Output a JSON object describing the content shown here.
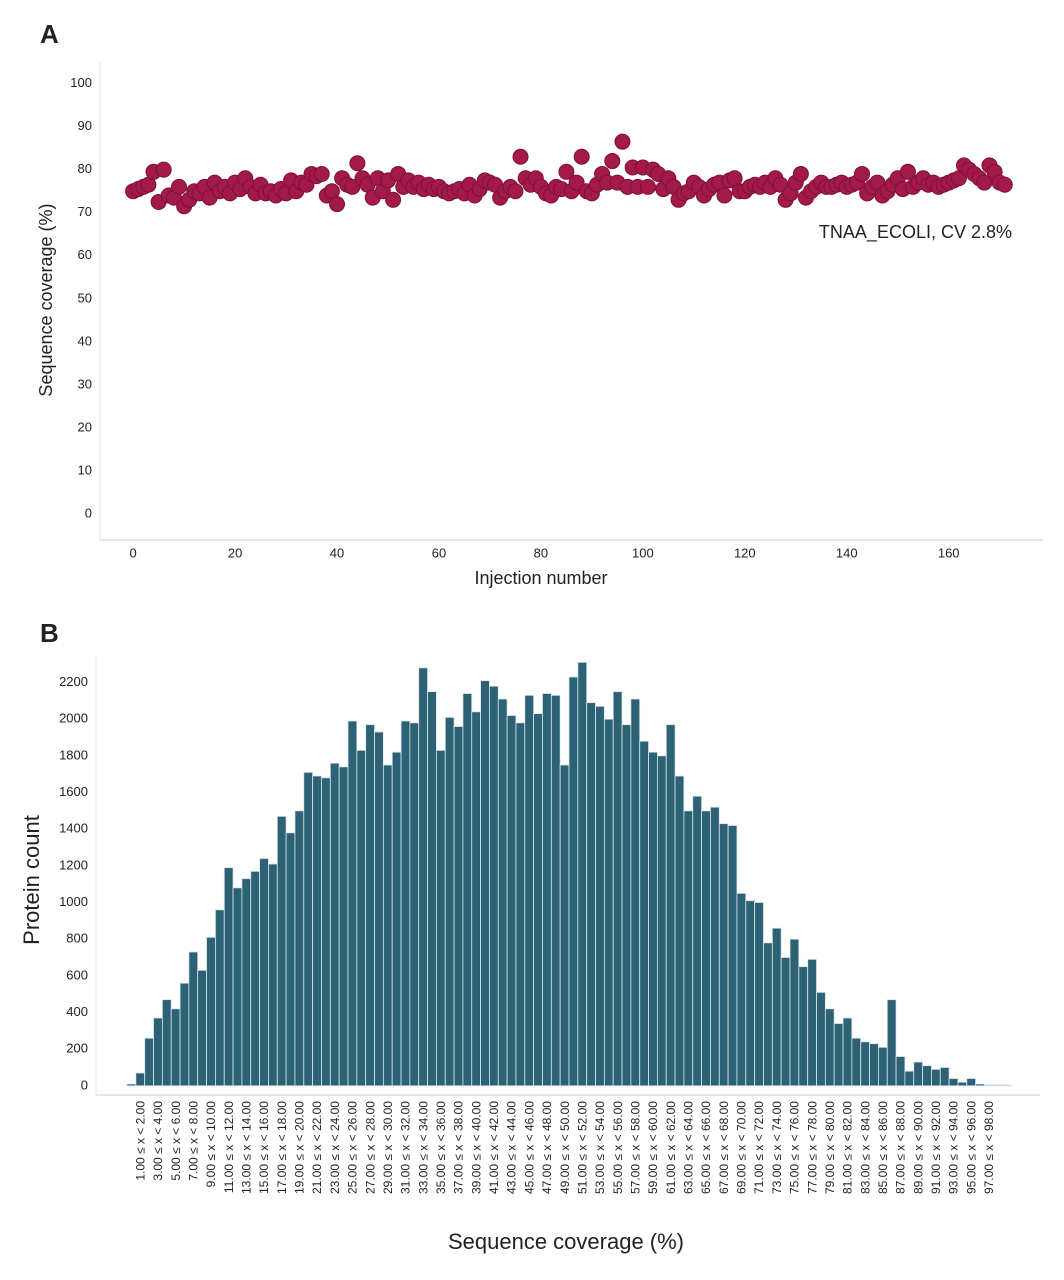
{
  "chart_data": [
    {
      "type": "scatter",
      "panel": "A",
      "xlabel": "Injection number",
      "ylabel": "Sequence coverage (%)",
      "annotation": "TNAA_ECOLI, CV 2.8%",
      "color": "#a3194a",
      "x": [
        0,
        1,
        2,
        3,
        4,
        5,
        6,
        7,
        8,
        9,
        10,
        11,
        12,
        13,
        14,
        15,
        16,
        17,
        18,
        19,
        20,
        21,
        22,
        23,
        24,
        25,
        26,
        27,
        28,
        29,
        30,
        31,
        32,
        33,
        34,
        35,
        36,
        37,
        38,
        39,
        40,
        41,
        42,
        43,
        44,
        45,
        46,
        47,
        48,
        49,
        50,
        51,
        52,
        53,
        54,
        55,
        56,
        57,
        58,
        59,
        60,
        61,
        62,
        63,
        64,
        65,
        66,
        67,
        68,
        69,
        70,
        71,
        72,
        73,
        74,
        75,
        76,
        77,
        78,
        79,
        80,
        81,
        82,
        83,
        84,
        85,
        86,
        87,
        88,
        89,
        90,
        91,
        92,
        93,
        94,
        95,
        96,
        97,
        98,
        99,
        100,
        101,
        102,
        103,
        104,
        105,
        106,
        107,
        108,
        109,
        110,
        111,
        112,
        113,
        114,
        115,
        116,
        117,
        118,
        119,
        120,
        121,
        122,
        123,
        124,
        125,
        126,
        127,
        128,
        129,
        130,
        131,
        132,
        133,
        134,
        135,
        136,
        137,
        138,
        139,
        140,
        141,
        142,
        143,
        144,
        145,
        146,
        147,
        148,
        149,
        150,
        151,
        152,
        153,
        154,
        155,
        156,
        157,
        158,
        159,
        160,
        161,
        162,
        163,
        164,
        165,
        166,
        167,
        168,
        169,
        170,
        171
      ],
      "values": [
        75,
        75.5,
        76,
        76.5,
        79.5,
        72.5,
        80,
        74,
        73.5,
        76,
        71.5,
        73,
        75,
        74.5,
        76,
        73.5,
        77,
        75,
        76,
        74.5,
        77,
        75.5,
        78,
        76,
        74.5,
        76.5,
        74.5,
        75,
        74,
        75.5,
        74.5,
        77.5,
        75,
        77,
        76.5,
        79,
        78.5,
        79,
        74,
        75,
        72,
        78,
        76.5,
        76,
        81.5,
        78,
        76.5,
        73.5,
        78,
        75,
        77.5,
        73,
        79,
        76,
        77.5,
        76,
        77,
        75.5,
        76.5,
        75.5,
        76,
        75,
        74.5,
        75,
        75.5,
        74.5,
        76.5,
        74,
        75.5,
        77.5,
        77,
        76.5,
        73.5,
        75,
        76,
        75,
        83,
        78,
        76.5,
        78,
        76,
        74.5,
        74,
        76,
        75.5,
        79.5,
        75,
        77,
        83,
        75,
        74.5,
        76.5,
        79,
        77,
        82,
        77,
        86.5,
        76,
        80.5,
        76,
        80.5,
        76,
        80,
        79,
        75.5,
        78,
        76,
        73,
        74.5,
        75,
        77,
        76,
        74,
        75.5,
        76.5,
        77,
        74,
        77.5,
        78,
        75,
        75,
        76,
        76.5,
        76,
        77,
        76,
        78,
        76.5,
        73,
        74.5,
        77,
        79,
        73.5,
        75,
        76,
        77,
        76,
        76,
        76.5,
        77,
        76,
        76.5,
        77,
        79,
        74.5,
        76,
        77,
        74,
        75,
        76.5,
        78,
        75.5,
        79.5,
        76,
        77,
        78,
        76.5,
        77,
        76,
        76.5,
        77,
        77.5,
        78,
        81,
        80,
        79,
        78,
        77,
        81,
        79.5,
        77,
        76.5
      ],
      "xlim": [
        -6.5,
        178.5
      ],
      "ylim": [
        -6,
        105
      ],
      "xticks": [
        0,
        20,
        40,
        60,
        80,
        100,
        120,
        140,
        160
      ],
      "yticks": [
        0,
        10,
        20,
        30,
        40,
        50,
        60,
        70,
        80,
        90,
        100
      ]
    },
    {
      "type": "bar",
      "panel": "B",
      "xlabel": "Sequence coverage (%)",
      "ylabel": "Protein count",
      "color": "#2d6276",
      "categories": [
        null,
        "1.00 ≤ x < 2.00",
        null,
        "3.00 ≤ x < 4.00",
        null,
        "5.00 ≤ x < 6.00",
        null,
        "7.00 ≤ x < 8.00",
        null,
        "9.00 ≤ x < 10.00",
        null,
        "11.00 ≤ x < 12.00",
        null,
        "13.00 ≤ x < 14.00",
        null,
        "15.00 ≤ x < 16.00",
        null,
        "17.00 ≤ x < 18.00",
        null,
        "19.00 ≤ x < 20.00",
        null,
        "21.00 ≤ x < 22.00",
        null,
        "23.00 ≤ x < 24.00",
        null,
        "25.00 ≤ x < 26.00",
        null,
        "27.00 ≤ x < 28.00",
        null,
        "29.00 ≤ x < 30.00",
        null,
        "31.00 ≤ x < 32.00",
        null,
        "33.00 ≤ x < 34.00",
        null,
        "35.00 ≤ x < 36.00",
        null,
        "37.00 ≤ x < 38.00",
        null,
        "39.00 ≤ x < 40.00",
        null,
        "41.00 ≤ x < 42.00",
        null,
        "43.00 ≤ x < 44.00",
        null,
        "45.00 ≤ x < 46.00",
        null,
        "47.00 ≤ x < 48.00",
        null,
        "49.00 ≤ x < 50.00",
        null,
        "51.00 ≤ x < 52.00",
        null,
        "53.00 ≤ x < 54.00",
        null,
        "55.00 ≤ x < 56.00",
        null,
        "57.00 ≤ x < 58.00",
        null,
        "59.00 ≤ x < 60.00",
        null,
        "61.00 ≤ x < 62.00",
        null,
        "63.00 ≤ x < 64.00",
        null,
        "65.00 ≤ x < 66.00",
        null,
        "67.00 ≤ x < 68.00",
        null,
        "69.00 ≤ x < 70.00",
        null,
        "71.00 ≤ x < 72.00",
        null,
        "73.00 ≤ x < 74.00",
        null,
        "75.00 ≤ x < 76.00",
        null,
        "77.00 ≤ x < 78.00",
        null,
        "79.00 ≤ x < 80.00",
        null,
        "81.00 ≤ x < 82.00",
        null,
        "83.00 ≤ x < 84.00",
        null,
        "85.00 ≤ x < 86.00",
        null,
        "87.00 ≤ x < 88.00",
        null,
        "89.00 ≤ x < 90.00",
        null,
        "91.00 ≤ x < 92.00",
        null,
        "93.00 ≤ x < 94.00",
        null,
        "95.00 ≤ x < 96.00",
        null,
        "97.00 ≤ x < 98.00",
        null,
        null
      ],
      "values": [
        10,
        70,
        260,
        370,
        470,
        420,
        560,
        730,
        630,
        810,
        960,
        1190,
        1080,
        1130,
        1170,
        1240,
        1210,
        1470,
        1380,
        1500,
        1710,
        1690,
        1680,
        1760,
        1740,
        1990,
        1830,
        1970,
        1930,
        1750,
        1820,
        1990,
        1980,
        2280,
        2150,
        1830,
        2010,
        1960,
        2140,
        2040,
        2210,
        2180,
        2110,
        2020,
        1980,
        2130,
        2030,
        2140,
        2130,
        1750,
        2230,
        2310,
        2090,
        2070,
        2000,
        2150,
        1970,
        2110,
        1880,
        1820,
        1800,
        1970,
        1690,
        1500,
        1580,
        1500,
        1520,
        1430,
        1420,
        1050,
        1010,
        1000,
        780,
        860,
        700,
        800,
        650,
        690,
        510,
        420,
        340,
        370,
        260,
        240,
        230,
        210,
        470,
        160,
        80,
        130,
        110,
        90,
        100,
        40,
        20,
        40,
        10,
        5,
        5,
        5
      ],
      "ylim": [
        -50,
        2350
      ],
      "yticks": [
        0,
        200,
        400,
        600,
        800,
        1000,
        1200,
        1400,
        1600,
        1800,
        2000,
        2200
      ]
    }
  ]
}
